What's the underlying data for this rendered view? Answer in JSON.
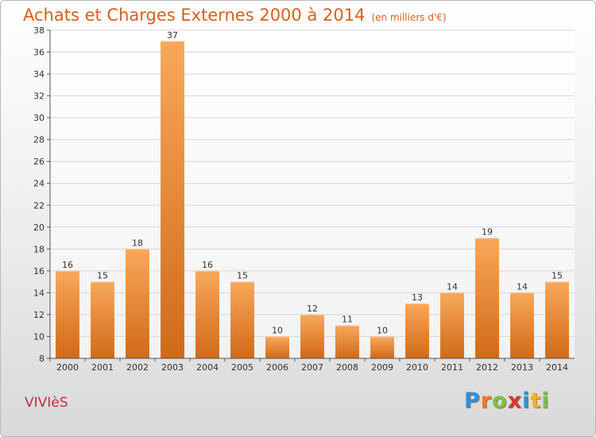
{
  "title": "Achats et Charges Externes 2000 à 2014",
  "unit_note": "(en milliers d'€)",
  "commune": "VIVIèS",
  "logo": {
    "letters": [
      "P",
      "r",
      "o",
      "x",
      "i",
      "t",
      "i"
    ],
    "colors": [
      "#2f8fd8",
      "#f07a1e",
      "#7cc142",
      "#d9362b",
      "#2f8fd8",
      "#f0b41e",
      "#7cc142"
    ]
  },
  "colors": {
    "bar_top": "#f8a85a",
    "bar_bottom": "#d06a18",
    "axis": "#555555",
    "grid": "#d8d8d8"
  },
  "chart_data": {
    "type": "bar",
    "categories": [
      "2000",
      "2001",
      "2002",
      "2003",
      "2004",
      "2005",
      "2006",
      "2007",
      "2008",
      "2009",
      "2010",
      "2011",
      "2012",
      "2013",
      "2014"
    ],
    "values": [
      16,
      15,
      18,
      37,
      16,
      15,
      10,
      12,
      11,
      10,
      13,
      14,
      19,
      14,
      15
    ],
    "data_labels": [
      "16",
      "15",
      "18",
      "37",
      "16",
      "15",
      "10",
      "12",
      "11",
      "10",
      "13",
      "14",
      "19",
      "14",
      "15"
    ],
    "yticks": [
      "8",
      "10",
      "12",
      "14",
      "16",
      "18",
      "20",
      "22",
      "24",
      "26",
      "28",
      "30",
      "32",
      "34",
      "36",
      "38"
    ],
    "ylim": [
      8,
      38
    ],
    "grid": true,
    "legend": "none"
  }
}
